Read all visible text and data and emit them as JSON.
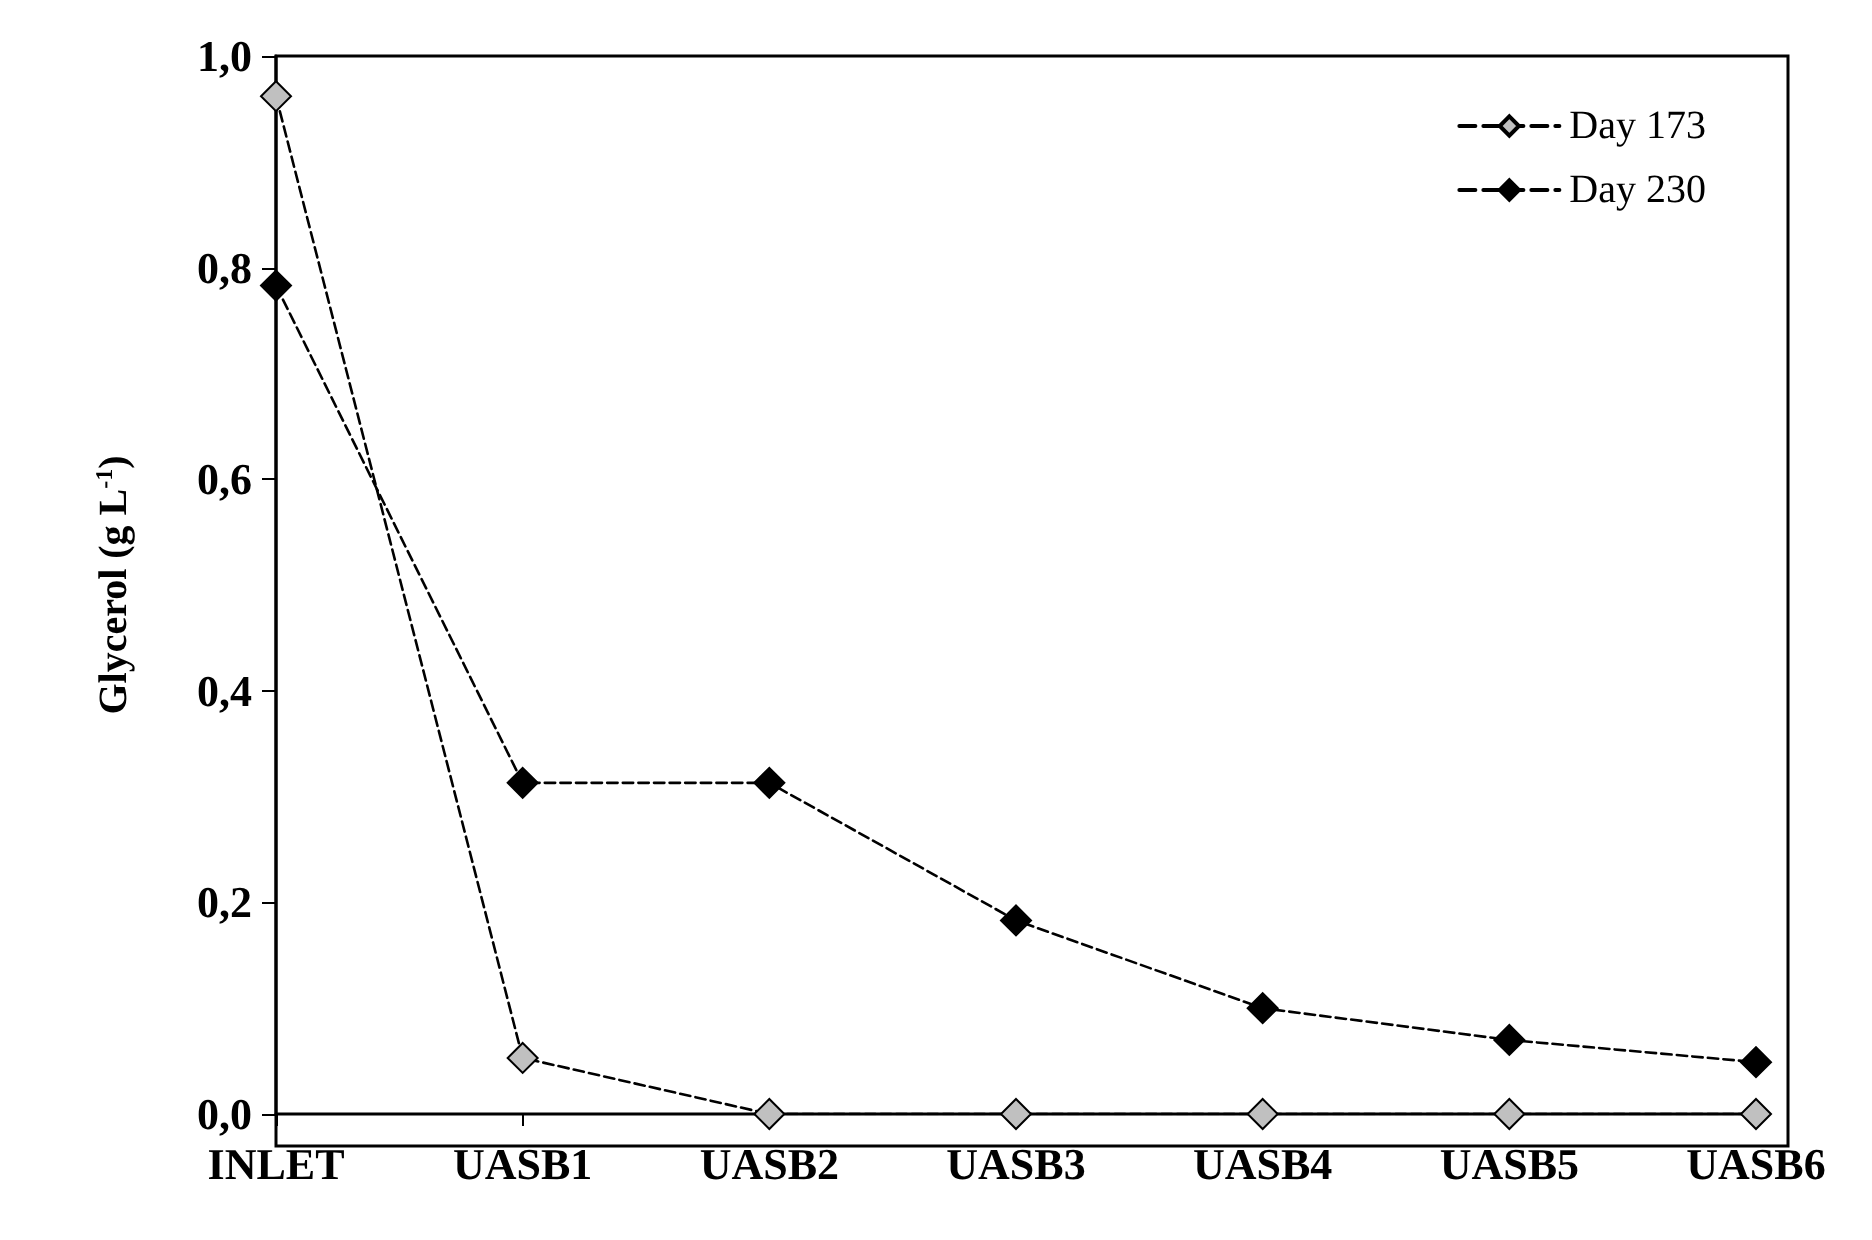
{
  "chart_data": {
    "type": "line",
    "ylabel": "Glycerol (g L$^{-1}$)",
    "categories": [
      "INLET",
      "UASB1",
      "UASB2",
      "UASB3",
      "UASB4",
      "UASB5",
      "UASB6"
    ],
    "series": [
      {
        "name": "Day 173",
        "color": "#c0c0c0",
        "values": [
          0.962,
          0.053,
          0,
          0,
          0,
          0,
          0
        ]
      },
      {
        "name": "Day 230",
        "color": "#000000",
        "values": [
          0.783,
          0.313,
          0.313,
          0.183,
          0.1,
          0.07,
          0.049
        ]
      }
    ],
    "ylim": [
      0,
      1
    ],
    "yticks": [
      {
        "value": 0,
        "label": "0,0"
      },
      {
        "value": 0.2,
        "label": "0,2"
      },
      {
        "value": 0.4,
        "label": "0,4"
      },
      {
        "value": 0.6,
        "label": "0,6"
      },
      {
        "value": 0.8,
        "label": "0,8"
      },
      {
        "value": 1,
        "label": "1,0"
      }
    ],
    "grid": false,
    "legend": "top right",
    "marker": "diamond",
    "line_style": "dashed"
  }
}
